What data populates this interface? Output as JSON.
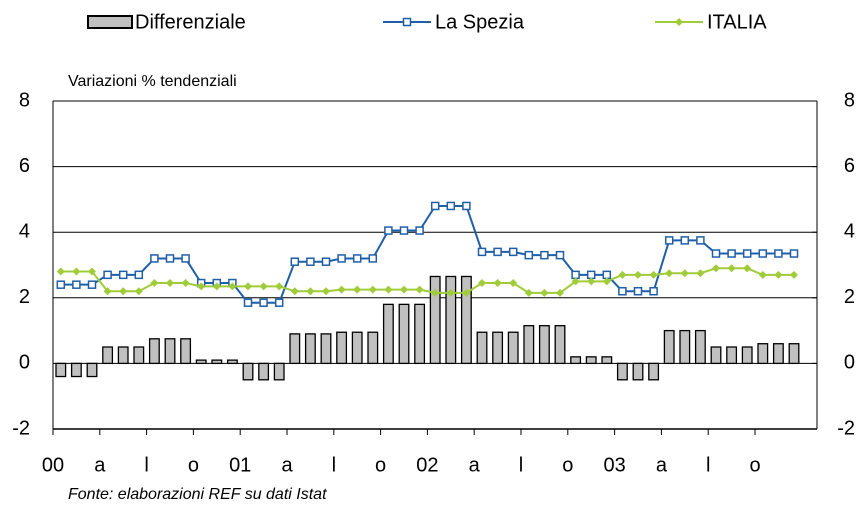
{
  "chart_data": {
    "type": "combo",
    "subtitle": "Variazioni % tendenziali",
    "source": "Fonte: elaborazioni REF su dati Istat",
    "categories": [
      "00",
      null,
      null,
      "a",
      null,
      null,
      "l",
      null,
      null,
      "o",
      null,
      null,
      "01",
      null,
      null,
      "a",
      null,
      null,
      "l",
      null,
      null,
      "o",
      null,
      null,
      "02",
      null,
      null,
      "a",
      null,
      null,
      "l",
      null,
      null,
      "o",
      null,
      null,
      "03",
      null,
      null,
      "a",
      null,
      null,
      "l",
      null,
      null,
      "o",
      null,
      null
    ],
    "series": [
      {
        "name": "Differenziale",
        "type": "bar",
        "color": "#c0c0c0",
        "values": [
          -0.4,
          -0.4,
          -0.4,
          0.5,
          0.5,
          0.5,
          0.75,
          0.75,
          0.75,
          0.1,
          0.1,
          0.1,
          -0.5,
          -0.5,
          -0.5,
          0.9,
          0.9,
          0.9,
          0.95,
          0.95,
          0.95,
          1.8,
          1.8,
          1.8,
          2.65,
          2.65,
          2.65,
          0.95,
          0.95,
          0.95,
          1.15,
          1.15,
          1.15,
          0.2,
          0.2,
          0.2,
          -0.5,
          -0.5,
          -0.5,
          1.0,
          1.0,
          1.0,
          0.5,
          0.5,
          0.5,
          0.6,
          0.6,
          0.6
        ]
      },
      {
        "name": "La Spezia",
        "type": "line",
        "marker": "square",
        "color": "#1f5fa8",
        "values": [
          2.4,
          2.4,
          2.4,
          2.7,
          2.7,
          2.7,
          3.2,
          3.2,
          3.2,
          2.45,
          2.45,
          2.45,
          1.85,
          1.85,
          1.85,
          3.1,
          3.1,
          3.1,
          3.2,
          3.2,
          3.2,
          4.05,
          4.05,
          4.05,
          4.8,
          4.8,
          4.8,
          3.4,
          3.4,
          3.4,
          3.3,
          3.3,
          3.3,
          2.7,
          2.7,
          2.7,
          2.2,
          2.2,
          2.2,
          3.75,
          3.75,
          3.75,
          3.35,
          3.35,
          3.35,
          3.35,
          3.35,
          3.35
        ]
      },
      {
        "name": "ITALIA",
        "type": "line",
        "marker": "diamond",
        "color": "#a0cc3a",
        "values": [
          2.8,
          2.8,
          2.8,
          2.2,
          2.2,
          2.2,
          2.45,
          2.45,
          2.45,
          2.35,
          2.35,
          2.35,
          2.35,
          2.35,
          2.35,
          2.2,
          2.2,
          2.2,
          2.25,
          2.25,
          2.25,
          2.25,
          2.25,
          2.25,
          2.15,
          2.15,
          2.15,
          2.45,
          2.45,
          2.45,
          2.15,
          2.15,
          2.15,
          2.5,
          2.5,
          2.5,
          2.7,
          2.7,
          2.7,
          2.75,
          2.75,
          2.75,
          2.9,
          2.9,
          2.9,
          2.7,
          2.7,
          2.7
        ]
      }
    ],
    "ylim": [
      -2,
      8
    ],
    "yticks": [
      -2,
      0,
      2,
      4,
      6,
      8
    ],
    "y2lim": [
      -2,
      8
    ],
    "y2ticks": [
      -2,
      0,
      2,
      4,
      6,
      8
    ]
  }
}
